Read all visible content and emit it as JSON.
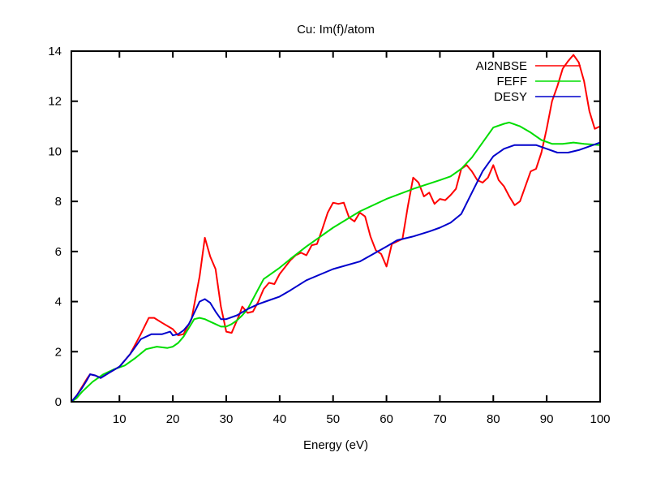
{
  "chart_data": {
    "type": "line",
    "title": "Cu: Im(f)/atom",
    "xlabel": "Energy (eV)",
    "ylabel": "",
    "xlim": [
      1,
      100
    ],
    "ylim": [
      0,
      14
    ],
    "xticks": [
      10,
      20,
      30,
      40,
      50,
      60,
      70,
      80,
      90,
      100
    ],
    "yticks": [
      0,
      2,
      4,
      6,
      8,
      10,
      12,
      14
    ],
    "grid": false,
    "legend_position": "top-right",
    "series": [
      {
        "name": "AI2NBSE",
        "color": "#ff0000",
        "x": [
          1,
          2,
          3,
          4,
          4.5,
          5.5,
          6.5,
          8,
          10,
          12,
          14,
          15.5,
          16.5,
          18,
          20,
          21,
          22,
          23.5,
          25,
          26,
          27,
          28,
          29,
          30,
          31,
          32.5,
          33,
          34,
          35,
          36,
          37,
          38,
          39,
          40,
          42,
          43,
          44,
          45,
          46,
          47,
          48,
          49,
          50,
          51,
          52,
          53,
          54,
          55,
          56,
          57,
          58,
          59,
          60,
          61,
          62,
          63,
          64,
          65,
          66,
          67,
          68,
          69,
          70,
          71,
          72,
          73,
          74,
          75,
          76,
          77,
          78,
          79,
          80,
          81,
          82,
          83,
          84,
          85,
          86,
          87,
          88,
          89,
          90,
          91,
          92,
          93,
          94,
          95,
          96,
          97,
          98,
          99,
          100
        ],
        "y": [
          0.0,
          0.25,
          0.6,
          0.95,
          1.1,
          1.05,
          0.95,
          1.15,
          1.4,
          1.9,
          2.7,
          3.35,
          3.35,
          3.15,
          2.9,
          2.65,
          2.7,
          3.3,
          5.0,
          6.55,
          5.8,
          5.3,
          3.8,
          2.8,
          2.75,
          3.5,
          3.8,
          3.55,
          3.6,
          4.0,
          4.5,
          4.75,
          4.7,
          5.1,
          5.65,
          5.85,
          5.95,
          5.85,
          6.25,
          6.3,
          6.9,
          7.55,
          7.95,
          7.9,
          7.95,
          7.35,
          7.2,
          7.55,
          7.4,
          6.6,
          6.05,
          5.9,
          5.4,
          6.3,
          6.4,
          6.5,
          7.8,
          8.95,
          8.75,
          8.2,
          8.35,
          7.9,
          8.1,
          8.05,
          8.25,
          8.5,
          9.3,
          9.45,
          9.2,
          8.85,
          8.75,
          8.95,
          9.45,
          8.85,
          8.6,
          8.2,
          7.85,
          8.0,
          8.6,
          9.2,
          9.3,
          9.95,
          10.9,
          12.0,
          12.6,
          13.3,
          13.6,
          13.85,
          13.55,
          12.8,
          11.6,
          10.9,
          11.0
        ]
      },
      {
        "name": "FEFF",
        "color": "#00dd00",
        "x": [
          1,
          2,
          3,
          5,
          7,
          9,
          11,
          13,
          15,
          17,
          19,
          20,
          21,
          22,
          23,
          24,
          25,
          26,
          27,
          28,
          29,
          30,
          31,
          32,
          33,
          34,
          35,
          36,
          37,
          38,
          40,
          42,
          45,
          50,
          55,
          60,
          65,
          70,
          72,
          74,
          76,
          78,
          80,
          82,
          83,
          85,
          87,
          89,
          91,
          93,
          95,
          97,
          100
        ],
        "y": [
          0.0,
          0.15,
          0.4,
          0.8,
          1.1,
          1.3,
          1.45,
          1.75,
          2.1,
          2.2,
          2.15,
          2.2,
          2.35,
          2.6,
          2.95,
          3.3,
          3.35,
          3.3,
          3.2,
          3.1,
          3.0,
          3.0,
          3.1,
          3.25,
          3.45,
          3.7,
          4.1,
          4.5,
          4.9,
          5.05,
          5.35,
          5.7,
          6.2,
          6.95,
          7.6,
          8.1,
          8.5,
          8.85,
          9.0,
          9.3,
          9.75,
          10.35,
          10.95,
          11.1,
          11.15,
          11.0,
          10.75,
          10.45,
          10.3,
          10.3,
          10.35,
          10.3,
          10.25
        ]
      },
      {
        "name": "DESY",
        "color": "#0000cc",
        "x": [
          1,
          2,
          3,
          4,
          4.5,
          5.5,
          6.5,
          8,
          10,
          12,
          14,
          16,
          18,
          19.5,
          20,
          21,
          22,
          23,
          24,
          25,
          26,
          27,
          28,
          29,
          30,
          32,
          34,
          36,
          38,
          40,
          42,
          45,
          50,
          55,
          60,
          62,
          65,
          68,
          70,
          72,
          74,
          76,
          78,
          80,
          82,
          84,
          86,
          88,
          90,
          92,
          94,
          96,
          98,
          100
        ],
        "y": [
          0.0,
          0.25,
          0.55,
          0.9,
          1.1,
          1.05,
          0.95,
          1.15,
          1.4,
          1.9,
          2.5,
          2.7,
          2.7,
          2.8,
          2.65,
          2.7,
          2.85,
          3.1,
          3.55,
          4.0,
          4.1,
          3.95,
          3.6,
          3.3,
          3.3,
          3.45,
          3.7,
          3.9,
          4.05,
          4.2,
          4.45,
          4.85,
          5.3,
          5.6,
          6.2,
          6.45,
          6.6,
          6.8,
          6.95,
          7.15,
          7.5,
          8.35,
          9.2,
          9.8,
          10.1,
          10.25,
          10.25,
          10.25,
          10.1,
          9.95,
          9.95,
          10.05,
          10.2,
          10.35
        ]
      }
    ]
  }
}
